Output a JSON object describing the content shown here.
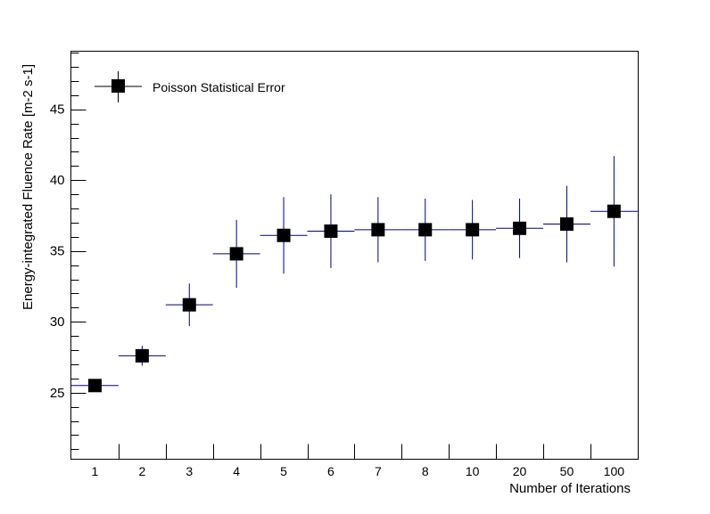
{
  "chart_data": {
    "type": "scatter",
    "title": "",
    "xlabel": "Number of Iterations",
    "ylabel": "Energy-integrated Fluence Rate [m-2 s-1]",
    "categories": [
      "1",
      "2",
      "3",
      "4",
      "5",
      "6",
      "7",
      "8",
      "10",
      "20",
      "50",
      "100"
    ],
    "ylim": [
      20.3,
      49.1
    ],
    "yticks": [
      25,
      30,
      35,
      40,
      45
    ],
    "ytick_labels": [
      "25",
      "30",
      "35",
      "40",
      "45"
    ],
    "grid": false,
    "legend_position": "top-left",
    "series": [
      {
        "name": "Poisson Statistical Error",
        "values": [
          25.5,
          27.6,
          31.2,
          34.8,
          36.1,
          36.4,
          36.5,
          36.5,
          36.5,
          36.6,
          36.9,
          37.8
        ],
        "error": [
          0.3,
          0.7,
          1.5,
          2.4,
          2.7,
          2.6,
          2.3,
          2.2,
          2.1,
          2.1,
          2.7,
          3.9
        ]
      }
    ],
    "colors": {
      "marker": "#000000",
      "error_bars": "#000080",
      "frame": "#000000",
      "background": "#ffffff"
    }
  }
}
